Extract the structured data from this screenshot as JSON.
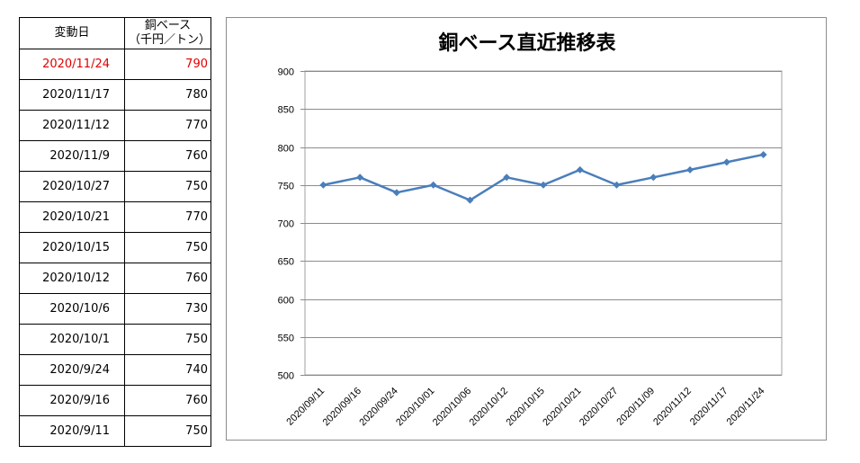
{
  "table": {
    "header_date": "変動日",
    "header_price_line1": "銅ベース",
    "header_price_line2": "（千円／トン）",
    "rows": [
      {
        "date": "2020/11/24",
        "price": "790"
      },
      {
        "date": "2020/11/17",
        "price": "780"
      },
      {
        "date": "2020/11/12",
        "price": "770"
      },
      {
        "date": "2020/11/9",
        "price": "760"
      },
      {
        "date": "2020/10/27",
        "price": "750"
      },
      {
        "date": "2020/10/21",
        "price": "770"
      },
      {
        "date": "2020/10/15",
        "price": "750"
      },
      {
        "date": "2020/10/12",
        "price": "760"
      },
      {
        "date": "2020/10/6",
        "price": "730"
      },
      {
        "date": "2020/10/1",
        "price": "750"
      },
      {
        "date": "2020/9/24",
        "price": "740"
      },
      {
        "date": "2020/9/16",
        "price": "760"
      },
      {
        "date": "2020/9/11",
        "price": "750"
      }
    ],
    "highlight_color": "#e00000"
  },
  "chart_data": {
    "type": "line",
    "title": "銅ベース直近推移表",
    "categories": [
      "2020/09/11",
      "2020/09/16",
      "2020/09/24",
      "2020/10/01",
      "2020/10/06",
      "2020/10/12",
      "2020/10/15",
      "2020/10/21",
      "2020/10/27",
      "2020/11/09",
      "2020/11/12",
      "2020/11/17",
      "2020/11/24"
    ],
    "series": [
      {
        "values": [
          750,
          760,
          740,
          750,
          730,
          760,
          750,
          770,
          750,
          760,
          770,
          780,
          790
        ],
        "color": "#4a7ebb",
        "marker": "diamond"
      }
    ],
    "ylim": [
      500,
      900
    ],
    "yticks": [
      500,
      550,
      600,
      650,
      700,
      750,
      800,
      850,
      900
    ],
    "grid": true,
    "legend": "none",
    "xlabel": "",
    "ylabel": ""
  }
}
